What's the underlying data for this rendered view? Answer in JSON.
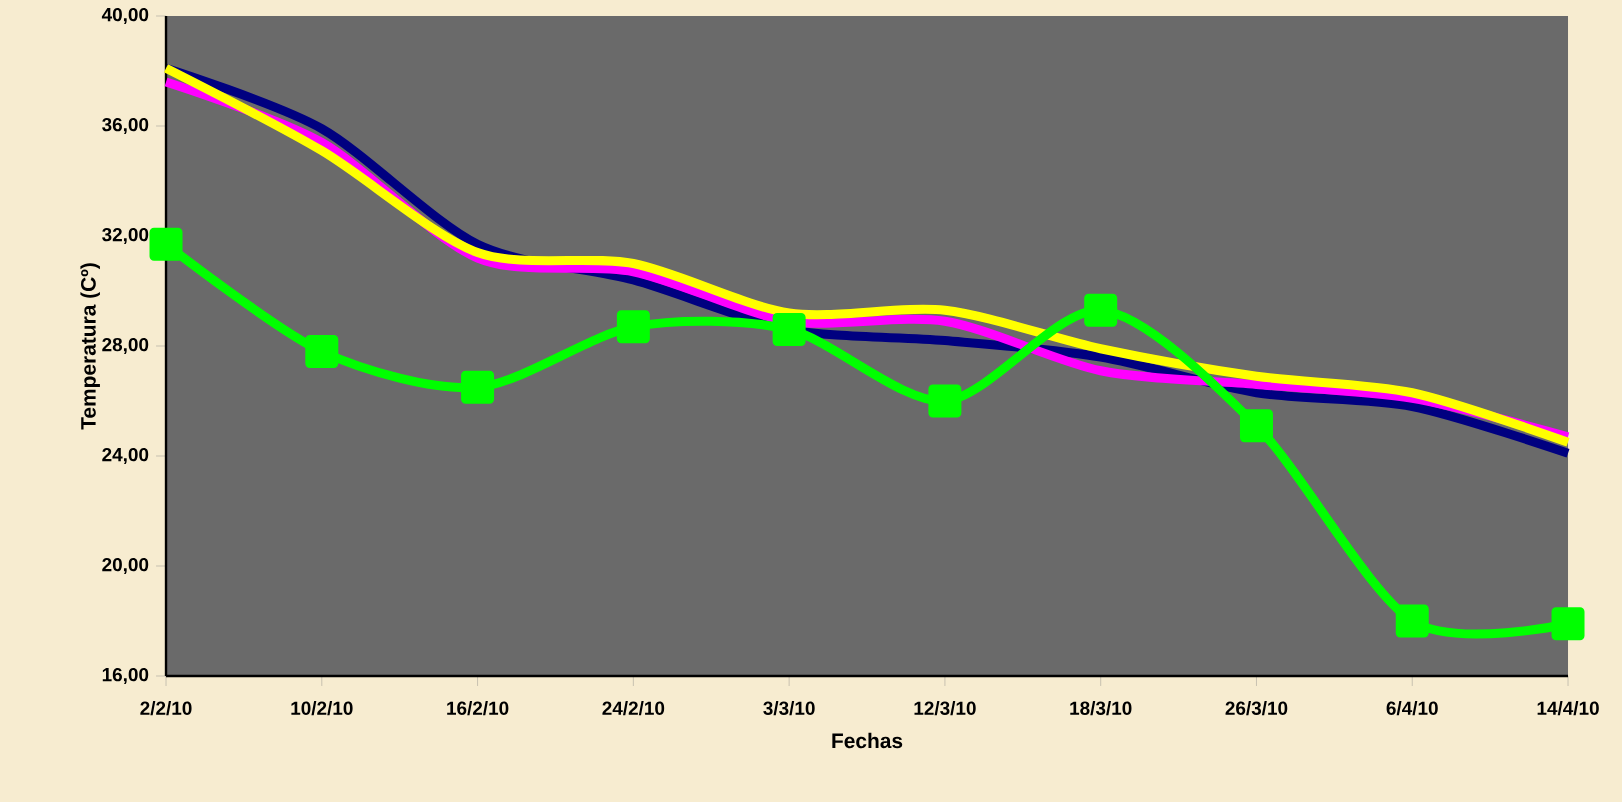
{
  "chart_data": {
    "type": "line",
    "xlabel": "Fechas",
    "ylabel": "Temperatura (Cº)",
    "categories": [
      "2/2/10",
      "10/2/10",
      "16/2/10",
      "24/2/10",
      "3/3/10",
      "12/3/10",
      "18/3/10",
      "26/3/10",
      "6/4/10",
      "14/4/10"
    ],
    "series": [
      {
        "color": "#000080",
        "marker": "none",
        "values": [
          38.1,
          35.9,
          31.7,
          30.4,
          28.6,
          28.2,
          27.6,
          26.3,
          25.8,
          24.1
        ]
      },
      {
        "color": "#ff00ff",
        "marker": "none",
        "values": [
          37.6,
          35.4,
          31.2,
          30.7,
          28.9,
          28.9,
          27.1,
          26.6,
          26.1,
          24.7
        ]
      },
      {
        "color": "#ffff00",
        "marker": "none",
        "values": [
          38.1,
          35.1,
          31.4,
          31.0,
          29.2,
          29.3,
          27.9,
          26.9,
          26.3,
          24.5
        ]
      },
      {
        "color": "#00ff00",
        "marker": "square",
        "values": [
          31.7,
          27.8,
          26.5,
          28.7,
          28.6,
          26.0,
          29.3,
          25.1,
          18.0,
          17.9
        ]
      }
    ],
    "ylim": [
      16,
      40
    ],
    "yticks": [
      {
        "value": 16,
        "label": "16,00"
      },
      {
        "value": 20,
        "label": "20,00"
      },
      {
        "value": 24,
        "label": "24,00"
      },
      {
        "value": 28,
        "label": "28,00"
      },
      {
        "value": 32,
        "label": "32,00"
      },
      {
        "value": 36,
        "label": "36,00"
      },
      {
        "value": 40,
        "label": "40,00"
      }
    ],
    "grid": false,
    "legend": false,
    "line_style": "solid"
  }
}
